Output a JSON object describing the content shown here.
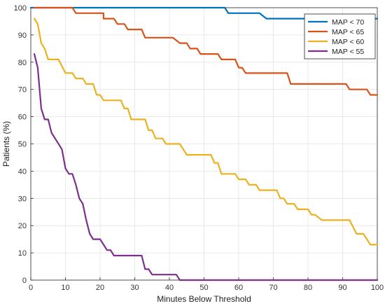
{
  "chart_data": {
    "type": "line",
    "title": "",
    "xlabel": "Minutes Below Threshold",
    "ylabel": "Patients (%)",
    "xlim": [
      0,
      100
    ],
    "ylim": [
      0,
      100
    ],
    "xticks": [
      0,
      10,
      20,
      30,
      40,
      50,
      60,
      70,
      80,
      90,
      100
    ],
    "yticks": [
      0,
      10,
      20,
      30,
      40,
      50,
      60,
      70,
      80,
      90,
      100
    ],
    "grid": true,
    "legend_position": "top-right",
    "series": [
      {
        "name": "MAP < 70",
        "color": "#0072BD",
        "points": [
          [
            0,
            100
          ],
          [
            56,
            100
          ],
          [
            57,
            98
          ],
          [
            66,
            98
          ],
          [
            68,
            96
          ],
          [
            100,
            96
          ]
        ]
      },
      {
        "name": "MAP < 65",
        "color": "#D95319",
        "points": [
          [
            1,
            100
          ],
          [
            12,
            100
          ],
          [
            13,
            98
          ],
          [
            21,
            98
          ],
          [
            21,
            96
          ],
          [
            24,
            96
          ],
          [
            25,
            94
          ],
          [
            27,
            94
          ],
          [
            28,
            92
          ],
          [
            32,
            92
          ],
          [
            33,
            89
          ],
          [
            41,
            89
          ],
          [
            43,
            87
          ],
          [
            45,
            87
          ],
          [
            46,
            85
          ],
          [
            48,
            85
          ],
          [
            49,
            83
          ],
          [
            54,
            83
          ],
          [
            55,
            81
          ],
          [
            59,
            81
          ],
          [
            60,
            78
          ],
          [
            61,
            78
          ],
          [
            62,
            76
          ],
          [
            74,
            76
          ],
          [
            75,
            72
          ],
          [
            91,
            72
          ],
          [
            92,
            70
          ],
          [
            97,
            70
          ],
          [
            98,
            68
          ],
          [
            100,
            68
          ]
        ]
      },
      {
        "name": "MAP < 60",
        "color": "#EDB120",
        "points": [
          [
            1,
            96
          ],
          [
            2,
            94
          ],
          [
            3,
            87
          ],
          [
            4,
            85
          ],
          [
            5,
            81
          ],
          [
            8,
            81
          ],
          [
            10,
            76
          ],
          [
            12,
            76
          ],
          [
            13,
            74
          ],
          [
            15,
            74
          ],
          [
            16,
            72
          ],
          [
            18,
            72
          ],
          [
            19,
            68
          ],
          [
            20,
            68
          ],
          [
            21,
            66
          ],
          [
            26,
            66
          ],
          [
            27,
            63
          ],
          [
            28,
            63
          ],
          [
            29,
            59
          ],
          [
            33,
            59
          ],
          [
            34,
            55
          ],
          [
            35,
            55
          ],
          [
            36,
            52
          ],
          [
            38,
            52
          ],
          [
            39,
            50
          ],
          [
            43,
            50
          ],
          [
            45,
            46
          ],
          [
            52,
            46
          ],
          [
            53,
            43
          ],
          [
            54,
            43
          ],
          [
            55,
            39
          ],
          [
            59,
            39
          ],
          [
            60,
            37
          ],
          [
            62,
            37
          ],
          [
            63,
            35
          ],
          [
            65,
            35
          ],
          [
            66,
            33
          ],
          [
            71,
            33
          ],
          [
            72,
            30
          ],
          [
            73,
            30
          ],
          [
            74,
            28
          ],
          [
            76,
            28
          ],
          [
            77,
            26
          ],
          [
            80,
            26
          ],
          [
            81,
            24
          ],
          [
            82,
            24
          ],
          [
            84,
            22
          ],
          [
            92,
            22
          ],
          [
            94,
            17
          ],
          [
            96,
            17
          ],
          [
            98,
            13
          ],
          [
            100,
            13
          ]
        ]
      },
      {
        "name": "MAP < 55",
        "color": "#7E2F8E",
        "points": [
          [
            1,
            83
          ],
          [
            2,
            78
          ],
          [
            3,
            63
          ],
          [
            4,
            59
          ],
          [
            5,
            59
          ],
          [
            6,
            54
          ],
          [
            7,
            52
          ],
          [
            9,
            48
          ],
          [
            10,
            41
          ],
          [
            11,
            39
          ],
          [
            12,
            39
          ],
          [
            13,
            35
          ],
          [
            14,
            30
          ],
          [
            15,
            28
          ],
          [
            16,
            22
          ],
          [
            17,
            17
          ],
          [
            18,
            15
          ],
          [
            20,
            15
          ],
          [
            22,
            11
          ],
          [
            23,
            11
          ],
          [
            24,
            9
          ],
          [
            32,
            9
          ],
          [
            33,
            4
          ],
          [
            34,
            4
          ],
          [
            35,
            2
          ],
          [
            42,
            2
          ],
          [
            43,
            0
          ],
          [
            100,
            0
          ]
        ]
      }
    ]
  }
}
